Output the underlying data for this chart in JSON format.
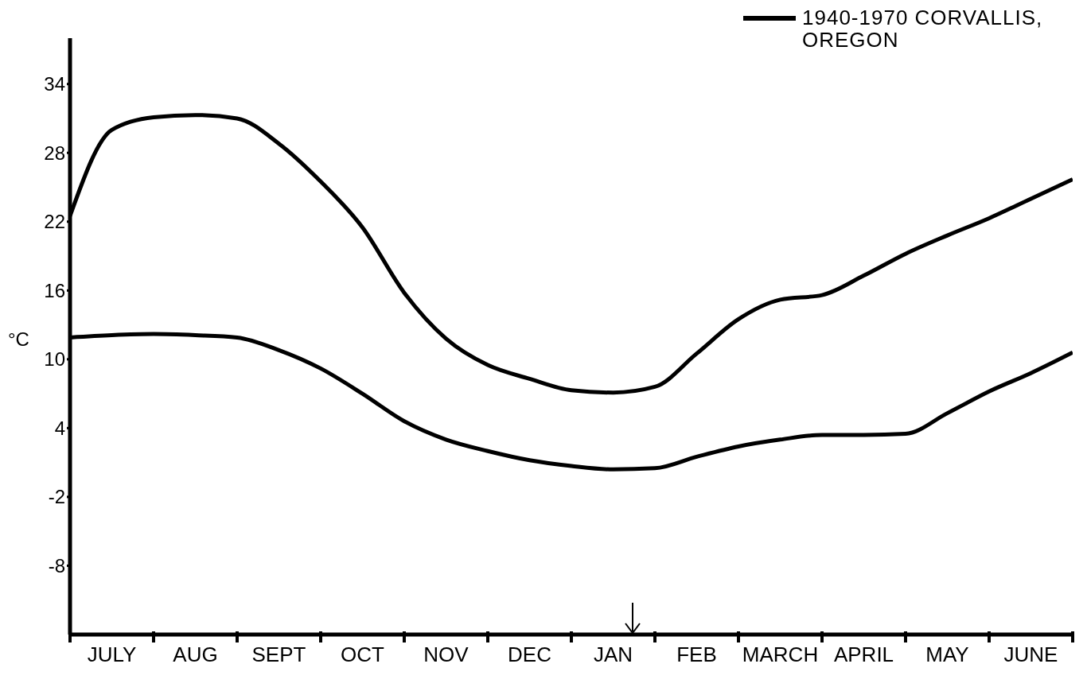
{
  "chart_data": {
    "type": "line",
    "ylabel": "°C",
    "ylim": [
      -14,
      38
    ],
    "yticks": [
      -8,
      -2,
      4,
      10,
      16,
      22,
      28,
      34
    ],
    "categories": [
      null,
      "JULY",
      null,
      "AUG",
      null,
      "SEPT",
      null,
      "OCT",
      null,
      "NOV",
      null,
      "DEC",
      null,
      "JAN",
      null,
      "FEB",
      null,
      "MARCH",
      null,
      "APRIL",
      null,
      "MAY",
      null,
      "JUNE",
      null
    ],
    "legend": "top right",
    "grid": false,
    "marker": "none",
    "line_style": "solid",
    "series": [
      {
        "name": "1940-1970 CORVALLIS, OREGON",
        "color": "#000000",
        "values": [
          22.5,
          30,
          31.1,
          31.3,
          31,
          28.8,
          25.5,
          21.5,
          15.8,
          11.8,
          9.5,
          8.3,
          7.3,
          7.1,
          7.6,
          10.5,
          13.5,
          15.2,
          15.6,
          17.3,
          19.2,
          20.8,
          22.3,
          24,
          25.7
        ]
      },
      {
        "color": "#000000",
        "values": [
          11.9,
          12.1,
          12.2,
          12.1,
          11.9,
          10.8,
          9.2,
          7,
          4.6,
          3,
          2,
          1.2,
          0.7,
          0.4,
          0.5,
          1.5,
          2.4,
          3,
          3.4,
          3.4,
          3.5,
          5.3,
          7.2,
          8.8,
          10.6
        ]
      }
    ]
  }
}
